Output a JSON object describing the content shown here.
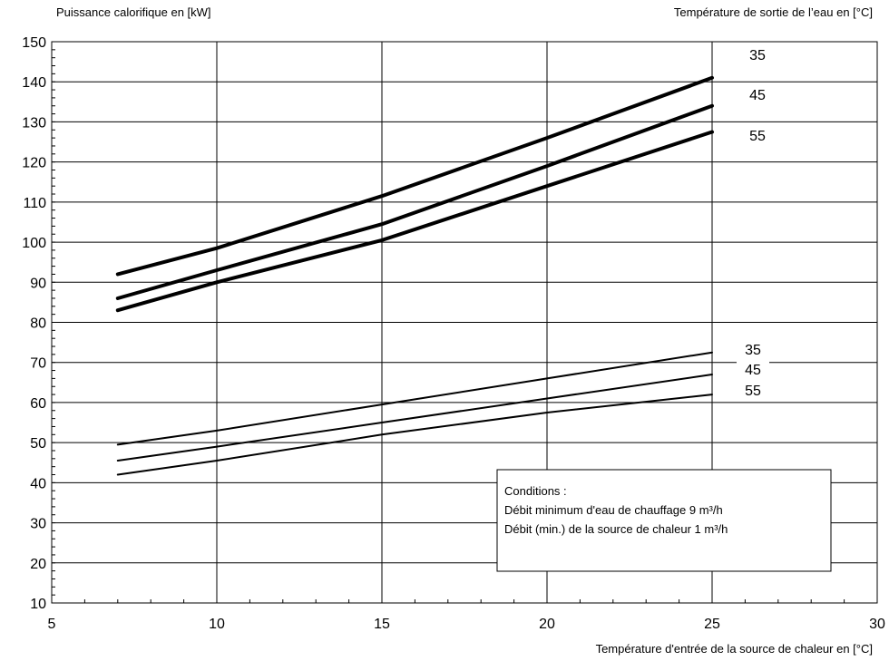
{
  "chart_data": {
    "type": "line",
    "ylabel": "Puissance calorifique en [kW]",
    "xlabel": "Température d'entrée de la source de chaleur en [°C]",
    "legend_title": "Température de sortie de l’eau en [°C]",
    "xlim": [
      5,
      30
    ],
    "ylim": [
      10,
      150
    ],
    "x_ticks": [
      5,
      10,
      15,
      20,
      25,
      30
    ],
    "y_ticks": [
      10,
      20,
      30,
      40,
      50,
      60,
      70,
      80,
      90,
      100,
      110,
      120,
      130,
      140,
      150
    ],
    "grid": true,
    "series": [
      {
        "name": "35",
        "group": "upper",
        "x": [
          7,
          10,
          15,
          20,
          25
        ],
        "values": [
          92,
          98.5,
          111.5,
          126,
          141
        ]
      },
      {
        "name": "45",
        "group": "upper",
        "x": [
          7,
          10,
          15,
          20,
          25
        ],
        "values": [
          86,
          93,
          104.5,
          119,
          134
        ]
      },
      {
        "name": "55",
        "group": "upper",
        "x": [
          7,
          10,
          15,
          20,
          25
        ],
        "values": [
          83,
          90,
          100.5,
          114,
          127.5
        ]
      },
      {
        "name": "35",
        "group": "lower",
        "x": [
          7,
          10,
          15,
          20,
          25
        ],
        "values": [
          49.5,
          53,
          59.5,
          66,
          72.5
        ]
      },
      {
        "name": "45",
        "group": "lower",
        "x": [
          7,
          10,
          15,
          20,
          25
        ],
        "values": [
          45.5,
          49,
          55,
          61,
          67
        ]
      },
      {
        "name": "55",
        "group": "lower",
        "x": [
          7,
          10,
          15,
          20,
          25
        ],
        "values": [
          42,
          45.5,
          52,
          57.5,
          62
        ]
      }
    ],
    "conditions": {
      "title": "Conditions :",
      "lines": [
        "Débit minimum d'eau de chauffage 9 m³/h",
        "Débit (min.) de la source de chaleur 1 m³/h"
      ]
    }
  }
}
